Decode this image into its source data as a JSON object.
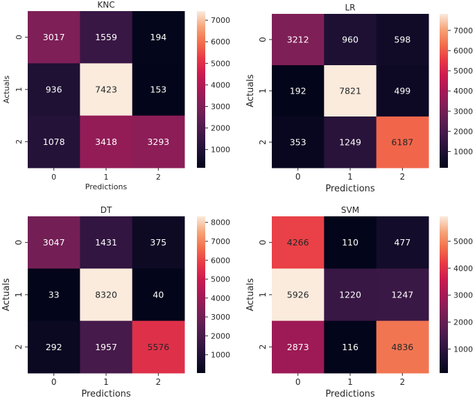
{
  "chart_data": [
    {
      "type": "heatmap",
      "title": "KNC",
      "xlabel": "Predictions",
      "ylabel": "Actuals",
      "xticks": [
        "0",
        "1",
        "2"
      ],
      "yticks": [
        "0",
        "1",
        "2"
      ],
      "values": [
        [
          3017,
          1559,
          194
        ],
        [
          936,
          7423,
          153
        ],
        [
          1078,
          3418,
          3293
        ]
      ],
      "colorbar": {
        "range": [
          153,
          7423
        ],
        "ticks": [
          1000,
          2000,
          3000,
          4000,
          5000,
          6000,
          7000
        ]
      }
    },
    {
      "type": "heatmap",
      "title": "LR",
      "xlabel": "Predictions",
      "ylabel": "Actuals",
      "xticks": [
        "0",
        "1",
        "2"
      ],
      "yticks": [
        "0",
        "1",
        "2"
      ],
      "values": [
        [
          3212,
          960,
          598
        ],
        [
          192,
          7821,
          499
        ],
        [
          353,
          1249,
          6187
        ]
      ],
      "colorbar": {
        "range": [
          192,
          7821
        ],
        "ticks": [
          1000,
          2000,
          3000,
          4000,
          5000,
          6000,
          7000
        ]
      }
    },
    {
      "type": "heatmap",
      "title": "DT",
      "xlabel": "Predictions",
      "ylabel": "Actuals",
      "xticks": [
        "0",
        "1",
        "2"
      ],
      "yticks": [
        "0",
        "1",
        "2"
      ],
      "values": [
        [
          3047,
          1431,
          375
        ],
        [
          33,
          8320,
          40
        ],
        [
          292,
          1957,
          5576
        ]
      ],
      "colorbar": {
        "range": [
          33,
          8320
        ],
        "ticks": [
          1000,
          2000,
          3000,
          4000,
          5000,
          6000,
          7000,
          8000
        ]
      }
    },
    {
      "type": "heatmap",
      "title": "SVM",
      "xlabel": "Predictions",
      "ylabel": "Actuals",
      "xticks": [
        "0",
        "1",
        "2"
      ],
      "yticks": [
        "0",
        "1",
        "2"
      ],
      "values": [
        [
          4266,
          110,
          477
        ],
        [
          5926,
          1220,
          1247
        ],
        [
          2873,
          116,
          4836
        ]
      ],
      "colorbar": {
        "range": [
          110,
          5926
        ],
        "ticks": [
          1000,
          2000,
          3000,
          4000,
          5000
        ]
      }
    }
  ]
}
